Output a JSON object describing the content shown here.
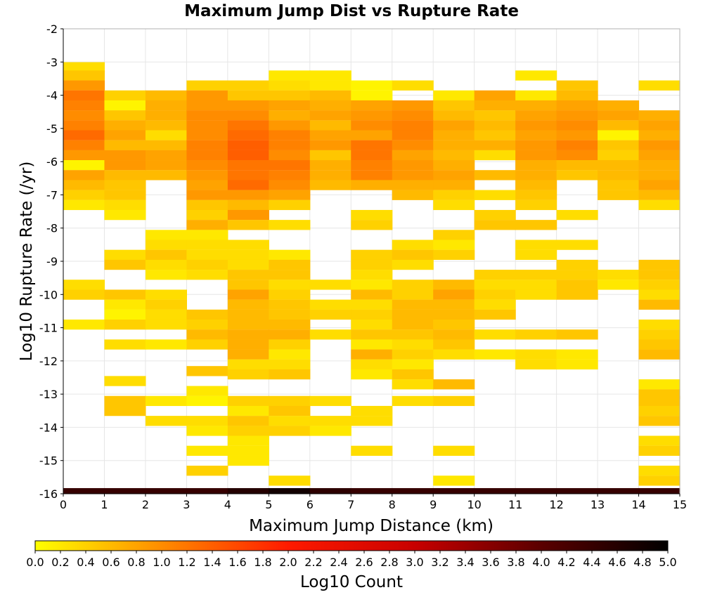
{
  "chart_data": {
    "type": "heatmap",
    "title": "Maximum Jump Dist vs Rupture Rate",
    "xlabel": "Maximum Jump Distance (km)",
    "ylabel": "Log10 Rupture Rate (/yr)",
    "xlim": [
      0,
      15
    ],
    "ylim": [
      -16,
      -2
    ],
    "x_ticks": [
      0,
      1,
      2,
      3,
      4,
      5,
      6,
      7,
      8,
      9,
      10,
      11,
      12,
      13,
      14,
      15
    ],
    "y_ticks": [
      -2,
      -3,
      -4,
      -5,
      -6,
      -7,
      -8,
      -9,
      -10,
      -11,
      -12,
      -13,
      -14,
      -15,
      -16
    ],
    "bin_width_x": 1,
    "bin_height_y": 0.29,
    "grid": true,
    "colorbar": {
      "label": "Log10 Count",
      "range": [
        0,
        5
      ],
      "ticks": [
        "0.0",
        "0.2",
        "0.4",
        "0.6",
        "0.8",
        "1.0",
        "1.2",
        "1.4",
        "1.6",
        "1.8",
        "2.0",
        "2.2",
        "2.4",
        "2.6",
        "2.8",
        "3.0",
        "3.2",
        "3.4",
        "3.6",
        "3.8",
        "4.0",
        "4.2",
        "4.4",
        "4.6",
        "4.8",
        "5.0"
      ],
      "colors": [
        "#ffff00",
        "#ff8c00",
        "#ff1a00",
        "#c80000",
        "#5a0000",
        "#000000"
      ],
      "placement": "bottom"
    },
    "bottom_row": {
      "y": -15.9,
      "values": [
        4.4,
        4.4,
        4.4,
        4.4,
        4.6,
        4.8,
        4.5,
        4.4,
        4.4,
        4.4,
        4.4,
        4.4,
        4.4,
        4.4,
        4.4
      ]
    },
    "cells": [
      {
        "x": 0,
        "y": [
          -3.15,
          -3.4,
          -3.7,
          -4.0,
          -4.3,
          -4.6,
          -4.9,
          -5.2,
          -5.5,
          -5.8,
          -6.1,
          -6.4,
          -6.7,
          -7.0,
          -7.3,
          -9.7,
          -10.0,
          -10.9
        ],
        "v": [
          0.3,
          0.5,
          0.9,
          1.2,
          1.1,
          1.0,
          1.1,
          1.3,
          1.1,
          0.9,
          0.1,
          0.8,
          0.6,
          0.4,
          0.2,
          0.3,
          0.4,
          0.2
        ]
      },
      {
        "x": 1,
        "y": [
          -4.0,
          -4.3,
          -4.6,
          -4.9,
          -5.2,
          -5.5,
          -5.8,
          -6.1,
          -6.4,
          -6.7,
          -7.0,
          -7.3,
          -7.6,
          -8.8,
          -9.1,
          -10.0,
          -10.3,
          -10.6,
          -10.9,
          -11.5,
          -12.6,
          -13.2,
          -13.5
        ],
        "v": [
          0.4,
          0.1,
          0.5,
          0.7,
          0.8,
          0.6,
          0.9,
          0.9,
          0.6,
          0.5,
          0.5,
          0.3,
          0.2,
          0.3,
          0.5,
          0.5,
          0.2,
          0.1,
          0.4,
          0.3,
          0.3,
          0.5,
          0.5
        ]
      },
      {
        "x": 2,
        "y": [
          -4.0,
          -4.3,
          -4.6,
          -4.9,
          -5.2,
          -5.5,
          -5.8,
          -6.1,
          -6.4,
          -8.2,
          -8.5,
          -8.8,
          -9.1,
          -9.4,
          -10.0,
          -10.3,
          -10.6,
          -10.9,
          -11.5,
          -13.2,
          -13.8
        ],
        "v": [
          0.6,
          0.7,
          0.7,
          0.6,
          0.3,
          0.6,
          0.8,
          0.8,
          0.6,
          0.2,
          0.3,
          0.5,
          0.3,
          0.2,
          0.3,
          0.4,
          0.3,
          0.3,
          0.2,
          0.2,
          0.3
        ]
      },
      {
        "x": 3,
        "y": [
          -3.7,
          -4.0,
          -4.3,
          -4.6,
          -4.9,
          -5.2,
          -5.5,
          -5.8,
          -6.1,
          -6.4,
          -6.7,
          -7.0,
          -7.3,
          -7.6,
          -7.9,
          -8.2,
          -8.5,
          -8.8,
          -9.1,
          -9.4,
          -10.6,
          -10.9,
          -11.2,
          -11.5,
          -12.3,
          -12.9,
          -13.2,
          -13.8,
          -14.1,
          -14.7,
          -15.3
        ],
        "v": [
          0.4,
          0.9,
          0.9,
          1.0,
          1.0,
          1.0,
          1.1,
          1.1,
          1.0,
          0.9,
          0.8,
          0.9,
          0.5,
          0.4,
          0.7,
          0.2,
          0.3,
          0.3,
          0.4,
          0.3,
          0.5,
          0.4,
          0.6,
          0.4,
          0.5,
          0.2,
          0.1,
          0.3,
          0.2,
          0.2,
          0.4
        ]
      },
      {
        "x": 4,
        "y": [
          -3.7,
          -4.0,
          -4.3,
          -4.6,
          -4.9,
          -5.2,
          -5.5,
          -5.8,
          -6.1,
          -6.4,
          -6.7,
          -7.0,
          -7.3,
          -7.6,
          -7.9,
          -8.5,
          -8.8,
          -9.1,
          -9.4,
          -9.7,
          -10.0,
          -10.3,
          -10.6,
          -10.9,
          -11.2,
          -11.5,
          -11.8,
          -12.1,
          -12.4,
          -13.2,
          -13.5,
          -13.8,
          -14.1,
          -14.4,
          -14.7,
          -15.0
        ],
        "v": [
          0.4,
          0.5,
          0.9,
          1.0,
          1.2,
          1.3,
          1.4,
          1.4,
          1.2,
          1.2,
          1.3,
          0.9,
          0.6,
          0.9,
          0.5,
          0.3,
          0.3,
          0.3,
          0.5,
          0.5,
          0.8,
          0.6,
          0.6,
          0.6,
          0.7,
          0.7,
          0.7,
          0.3,
          0.4,
          0.4,
          0.2,
          0.5,
          0.4,
          0.2,
          0.2,
          0.2
        ]
      },
      {
        "x": 5,
        "y": [
          -3.4,
          -3.7,
          -4.0,
          -4.3,
          -4.6,
          -4.9,
          -5.2,
          -5.5,
          -5.8,
          -6.1,
          -6.4,
          -6.7,
          -7.0,
          -7.3,
          -7.9,
          -8.8,
          -9.1,
          -9.4,
          -9.7,
          -10.0,
          -10.3,
          -10.6,
          -10.9,
          -11.2,
          -11.5,
          -11.8,
          -12.1,
          -12.4,
          -13.2,
          -13.5,
          -13.8,
          -14.1,
          -15.6
        ],
        "v": [
          0.2,
          0.3,
          0.5,
          0.8,
          0.7,
          0.9,
          1.1,
          1.1,
          1.0,
          1.2,
          1.1,
          1.0,
          0.8,
          0.4,
          0.3,
          0.2,
          0.5,
          0.5,
          0.3,
          0.4,
          0.5,
          0.5,
          0.6,
          0.7,
          0.4,
          0.2,
          0.3,
          0.5,
          0.4,
          0.5,
          0.3,
          0.4,
          0.3
        ]
      },
      {
        "x": 6,
        "y": [
          -3.4,
          -3.7,
          -4.0,
          -4.3,
          -4.6,
          -4.9,
          -5.2,
          -5.5,
          -5.8,
          -6.1,
          -6.4,
          -6.7,
          -9.7,
          -10.3,
          -10.6,
          -11.2,
          -13.2,
          -13.8,
          -14.1
        ],
        "v": [
          0.2,
          0.2,
          0.6,
          0.7,
          0.8,
          0.6,
          0.8,
          0.9,
          0.5,
          0.7,
          0.7,
          0.6,
          0.3,
          0.3,
          0.4,
          0.3,
          0.3,
          0.3,
          0.2
        ]
      },
      {
        "x": 7,
        "y": [
          -3.7,
          -4.0,
          -4.3,
          -4.6,
          -4.9,
          -5.2,
          -5.5,
          -5.8,
          -6.1,
          -6.4,
          -6.7,
          -7.6,
          -7.9,
          -8.8,
          -9.1,
          -9.4,
          -9.7,
          -10.0,
          -10.3,
          -10.6,
          -10.9,
          -11.2,
          -11.5,
          -11.8,
          -12.1,
          -12.4,
          -13.5,
          -13.8,
          -14.7
        ],
        "v": [
          0.1,
          0.1,
          0.8,
          0.9,
          1.0,
          0.8,
          1.2,
          1.2,
          1.1,
          1.1,
          0.7,
          0.3,
          0.4,
          0.4,
          0.4,
          0.3,
          0.2,
          0.6,
          0.3,
          0.4,
          0.3,
          0.5,
          0.2,
          0.7,
          0.3,
          0.2,
          0.3,
          0.3,
          0.3
        ]
      },
      {
        "x": 8,
        "y": [
          -3.7,
          -4.3,
          -4.6,
          -4.9,
          -5.2,
          -5.5,
          -5.8,
          -6.1,
          -6.4,
          -6.7,
          -7.0,
          -8.5,
          -8.8,
          -9.1,
          -9.7,
          -10.0,
          -10.3,
          -10.6,
          -10.9,
          -11.2,
          -11.5,
          -11.8,
          -12.1,
          -12.4,
          -12.7,
          -13.2
        ],
        "v": [
          0.3,
          0.9,
          1.0,
          1.1,
          1.1,
          1.0,
          0.8,
          0.9,
          0.9,
          0.7,
          0.6,
          0.3,
          0.5,
          0.3,
          0.4,
          0.4,
          0.6,
          0.6,
          0.6,
          0.5,
          0.3,
          0.4,
          0.2,
          0.5,
          0.3,
          0.3
        ]
      },
      {
        "x": 9,
        "y": [
          -4.0,
          -4.3,
          -4.6,
          -4.9,
          -5.2,
          -5.5,
          -5.8,
          -6.1,
          -6.4,
          -6.7,
          -7.0,
          -7.3,
          -8.2,
          -8.5,
          -8.8,
          -9.7,
          -10.0,
          -10.3,
          -10.6,
          -10.9,
          -11.2,
          -11.5,
          -11.8,
          -12.7,
          -13.2,
          -14.7,
          -15.6
        ],
        "v": [
          0.2,
          0.5,
          0.6,
          0.8,
          0.7,
          0.7,
          0.6,
          0.7,
          0.8,
          0.7,
          0.4,
          0.3,
          0.4,
          0.2,
          0.4,
          0.6,
          0.8,
          0.6,
          0.6,
          0.5,
          0.6,
          0.5,
          0.3,
          0.6,
          0.4,
          0.3,
          0.2
        ]
      },
      {
        "x": 10,
        "y": [
          -4.0,
          -4.3,
          -4.6,
          -4.9,
          -5.2,
          -5.5,
          -5.8,
          -6.4,
          -7.0,
          -7.6,
          -7.9,
          -9.4,
          -9.7,
          -10.0,
          -10.3,
          -10.6,
          -11.2,
          -11.8
        ],
        "v": [
          0.8,
          0.7,
          0.5,
          0.6,
          0.5,
          0.7,
          0.3,
          0.6,
          0.3,
          0.4,
          0.5,
          0.4,
          0.3,
          0.4,
          0.3,
          0.5,
          0.3,
          0.2
        ]
      },
      {
        "x": 11,
        "y": [
          -3.4,
          -4.0,
          -4.3,
          -4.6,
          -4.9,
          -5.2,
          -5.5,
          -5.8,
          -6.1,
          -6.4,
          -6.7,
          -7.0,
          -7.3,
          -7.9,
          -8.5,
          -8.8,
          -9.4,
          -9.7,
          -10.0,
          -11.2,
          -11.8,
          -12.1
        ],
        "v": [
          0.2,
          0.2,
          0.7,
          0.8,
          0.9,
          0.8,
          0.9,
          0.9,
          0.7,
          0.7,
          0.6,
          0.5,
          0.4,
          0.5,
          0.3,
          0.3,
          0.4,
          0.3,
          0.3,
          0.4,
          0.3,
          0.3
        ]
      },
      {
        "x": 12,
        "y": [
          -3.7,
          -4.0,
          -4.3,
          -4.6,
          -4.9,
          -5.2,
          -5.5,
          -5.8,
          -6.1,
          -6.4,
          -7.6,
          -8.5,
          -9.1,
          -9.4,
          -9.7,
          -10.0,
          -11.2,
          -11.8,
          -12.1
        ],
        "v": [
          0.5,
          0.6,
          0.8,
          0.9,
          1.0,
          0.9,
          1.1,
          1.0,
          0.6,
          0.5,
          0.3,
          0.3,
          0.4,
          0.4,
          0.5,
          0.5,
          0.5,
          0.2,
          0.2
        ]
      },
      {
        "x": 13,
        "y": [
          -4.3,
          -4.6,
          -4.9,
          -5.2,
          -5.5,
          -5.8,
          -6.1,
          -6.4,
          -6.7,
          -7.0,
          -9.4,
          -9.7
        ],
        "v": [
          0.7,
          0.8,
          0.6,
          0.1,
          0.5,
          0.4,
          0.6,
          0.6,
          0.5,
          0.5,
          0.3,
          0.2
        ]
      },
      {
        "x": 14,
        "y": [
          -3.7,
          -4.6,
          -4.9,
          -5.2,
          -5.5,
          -5.8,
          -6.1,
          -6.4,
          -6.7,
          -7.0,
          -7.3,
          -9.1,
          -9.4,
          -9.7,
          -10.0,
          -10.3,
          -10.9,
          -11.2,
          -11.5,
          -11.8,
          -12.7,
          -13.0,
          -13.2,
          -13.5,
          -13.8,
          -14.4,
          -14.7,
          -15.3,
          -15.6
        ],
        "v": [
          0.3,
          0.7,
          0.8,
          0.7,
          0.9,
          0.8,
          0.7,
          0.7,
          0.8,
          0.6,
          0.3,
          0.5,
          0.5,
          0.4,
          0.3,
          0.6,
          0.3,
          0.4,
          0.5,
          0.6,
          0.2,
          0.5,
          0.5,
          0.4,
          0.5,
          0.3,
          0.4,
          0.3,
          0.4
        ]
      }
    ]
  }
}
